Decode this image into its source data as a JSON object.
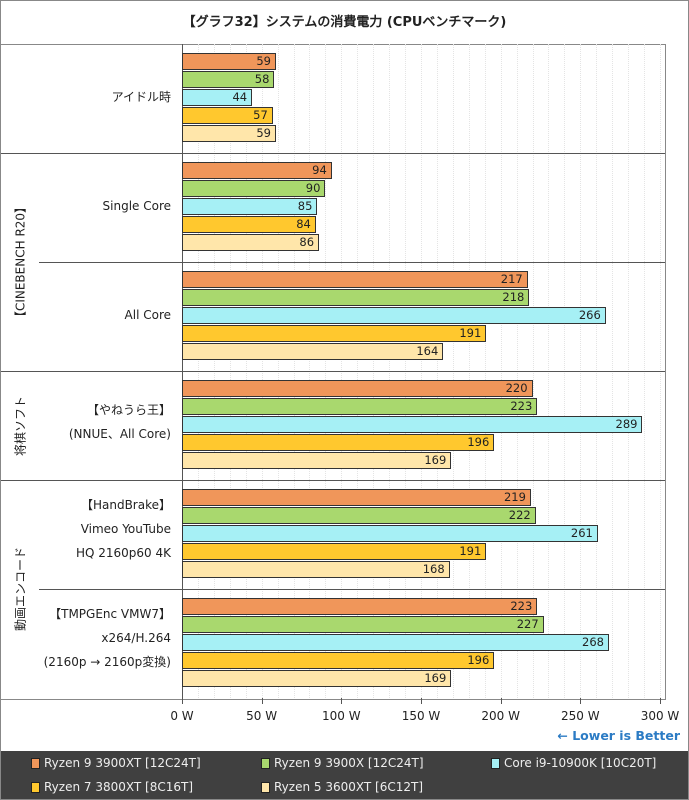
{
  "chart_data": {
    "type": "bar",
    "orientation": "horizontal",
    "title": "【グラフ32】システムの消費電力 (CPUベンチマーク)",
    "xlim": [
      0,
      300
    ],
    "xticks": [
      "0 W",
      "50 W",
      "100 W",
      "150 W",
      "200 W",
      "250 W",
      "300 W"
    ],
    "note": "← Lower is Better",
    "groups": [
      "【CINEBENCH R20】",
      "将棋ソフト",
      "動画エンコード"
    ],
    "categories": [
      {
        "lines": [
          "アイドル時"
        ],
        "group": ""
      },
      {
        "lines": [
          "Single Core"
        ],
        "group": "【CINEBENCH R20】"
      },
      {
        "lines": [
          "All Core"
        ],
        "group": "【CINEBENCH R20】"
      },
      {
        "lines": [
          "【やねうら王】",
          "(NNUE、All Core)"
        ],
        "group": "将棋ソフト"
      },
      {
        "lines": [
          "【HandBrake】",
          "Vimeo YouTube",
          "HQ 2160p60 4K"
        ],
        "group": "動画エンコード"
      },
      {
        "lines": [
          "【TMPGEnc VMW7】",
          "x264/H.264",
          "(2160p → 2160p変換)"
        ],
        "group": "動画エンコード"
      }
    ],
    "series": [
      {
        "name": "Ryzen 9 3900XT [12C24T]",
        "color": "#F0965A",
        "values": [
          59,
          94,
          217,
          220,
          219,
          223
        ]
      },
      {
        "name": "Ryzen 9 3900X [12C24T]",
        "color": "#A9D86E",
        "values": [
          58,
          90,
          218,
          223,
          222,
          227
        ]
      },
      {
        "name": "Core i9-10900K [10C20T]",
        "color": "#A6F0F5",
        "values": [
          44,
          85,
          266,
          289,
          261,
          268
        ]
      },
      {
        "name": "Ryzen 7 3800XT [8C16T]",
        "color": "#FFC82E",
        "values": [
          57,
          84,
          191,
          196,
          191,
          196
        ]
      },
      {
        "name": "Ryzen 5 3600XT [6C12T]",
        "color": "#FFE6AA",
        "values": [
          59,
          86,
          164,
          169,
          168,
          169
        ]
      }
    ],
    "legend_position": "bottom"
  }
}
